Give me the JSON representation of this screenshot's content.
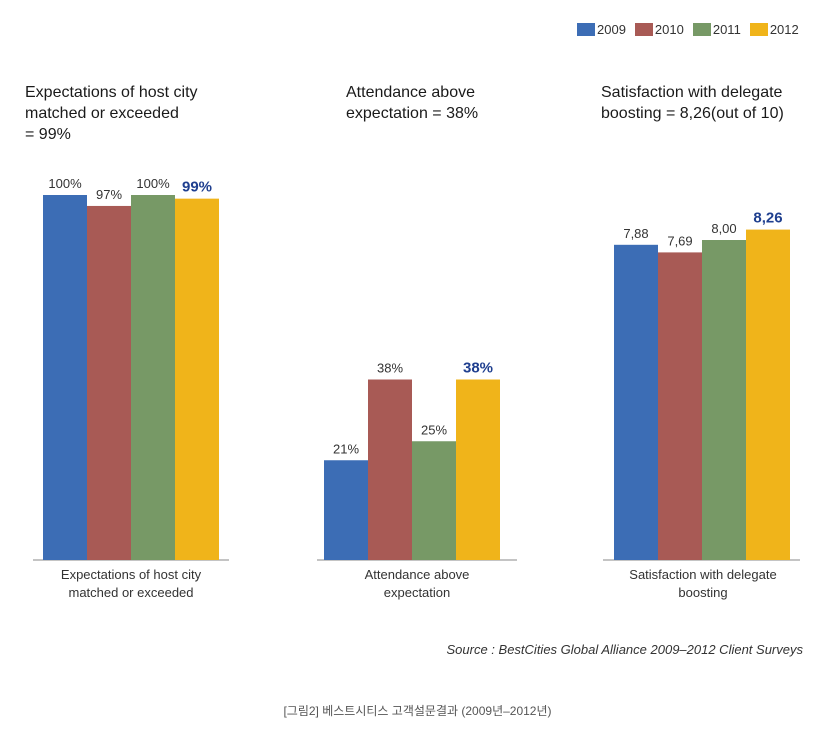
{
  "legend": {
    "items": [
      {
        "label": "2009",
        "color": "#3c6db5"
      },
      {
        "label": "2010",
        "color": "#a85a55"
      },
      {
        "label": "2011",
        "color": "#779966"
      },
      {
        "label": "2012",
        "color": "#f0b41a"
      }
    ]
  },
  "colors": {
    "highlight_label": "#1f3f8f",
    "axis": "#888888"
  },
  "chart_data": [
    {
      "type": "bar",
      "title": "Expectations of host city\nmatched or exceeded\n= 99%",
      "categories": [
        "Expectations of host city\nmatched or exceeded"
      ],
      "series": [
        {
          "name": "2009",
          "values": [
            100
          ],
          "label": "100%"
        },
        {
          "name": "2010",
          "values": [
            97
          ],
          "label": "97%"
        },
        {
          "name": "2011",
          "values": [
            100
          ],
          "label": "100%"
        },
        {
          "name": "2012",
          "values": [
            99
          ],
          "label": "99%"
        }
      ],
      "ylim": [
        0,
        100
      ],
      "grid": false
    },
    {
      "type": "bar",
      "title": "Attendance above\nexpectation = 38%",
      "categories": [
        "Attendance above\nexpectation"
      ],
      "series": [
        {
          "name": "2009",
          "values": [
            21
          ],
          "label": "21%"
        },
        {
          "name": "2010",
          "values": [
            38
          ],
          "label": "38%"
        },
        {
          "name": "2011",
          "values": [
            25
          ],
          "label": "25%"
        },
        {
          "name": "2012",
          "values": [
            38
          ],
          "label": "38%"
        }
      ],
      "ylim": [
        0,
        100
      ],
      "grid": false
    },
    {
      "type": "bar",
      "title": "Satisfaction with delegate\nboosting = 8,26(out of 10)",
      "categories": [
        "Satisfaction with delegate\nboosting"
      ],
      "series": [
        {
          "name": "2009",
          "values": [
            7.88
          ],
          "label": "7,88"
        },
        {
          "name": "2010",
          "values": [
            7.69
          ],
          "label": "7,69"
        },
        {
          "name": "2011",
          "values": [
            8.0
          ],
          "label": "8,00"
        },
        {
          "name": "2012",
          "values": [
            8.26
          ],
          "label": "8,26"
        }
      ],
      "ylim": [
        0,
        10
      ],
      "grid": false
    }
  ],
  "source": "Source : BestCities Global Alliance 2009–2012 Client Surveys",
  "caption": "[그림2] 베스트시티스 고객설문결과 (2009년–2012년)"
}
